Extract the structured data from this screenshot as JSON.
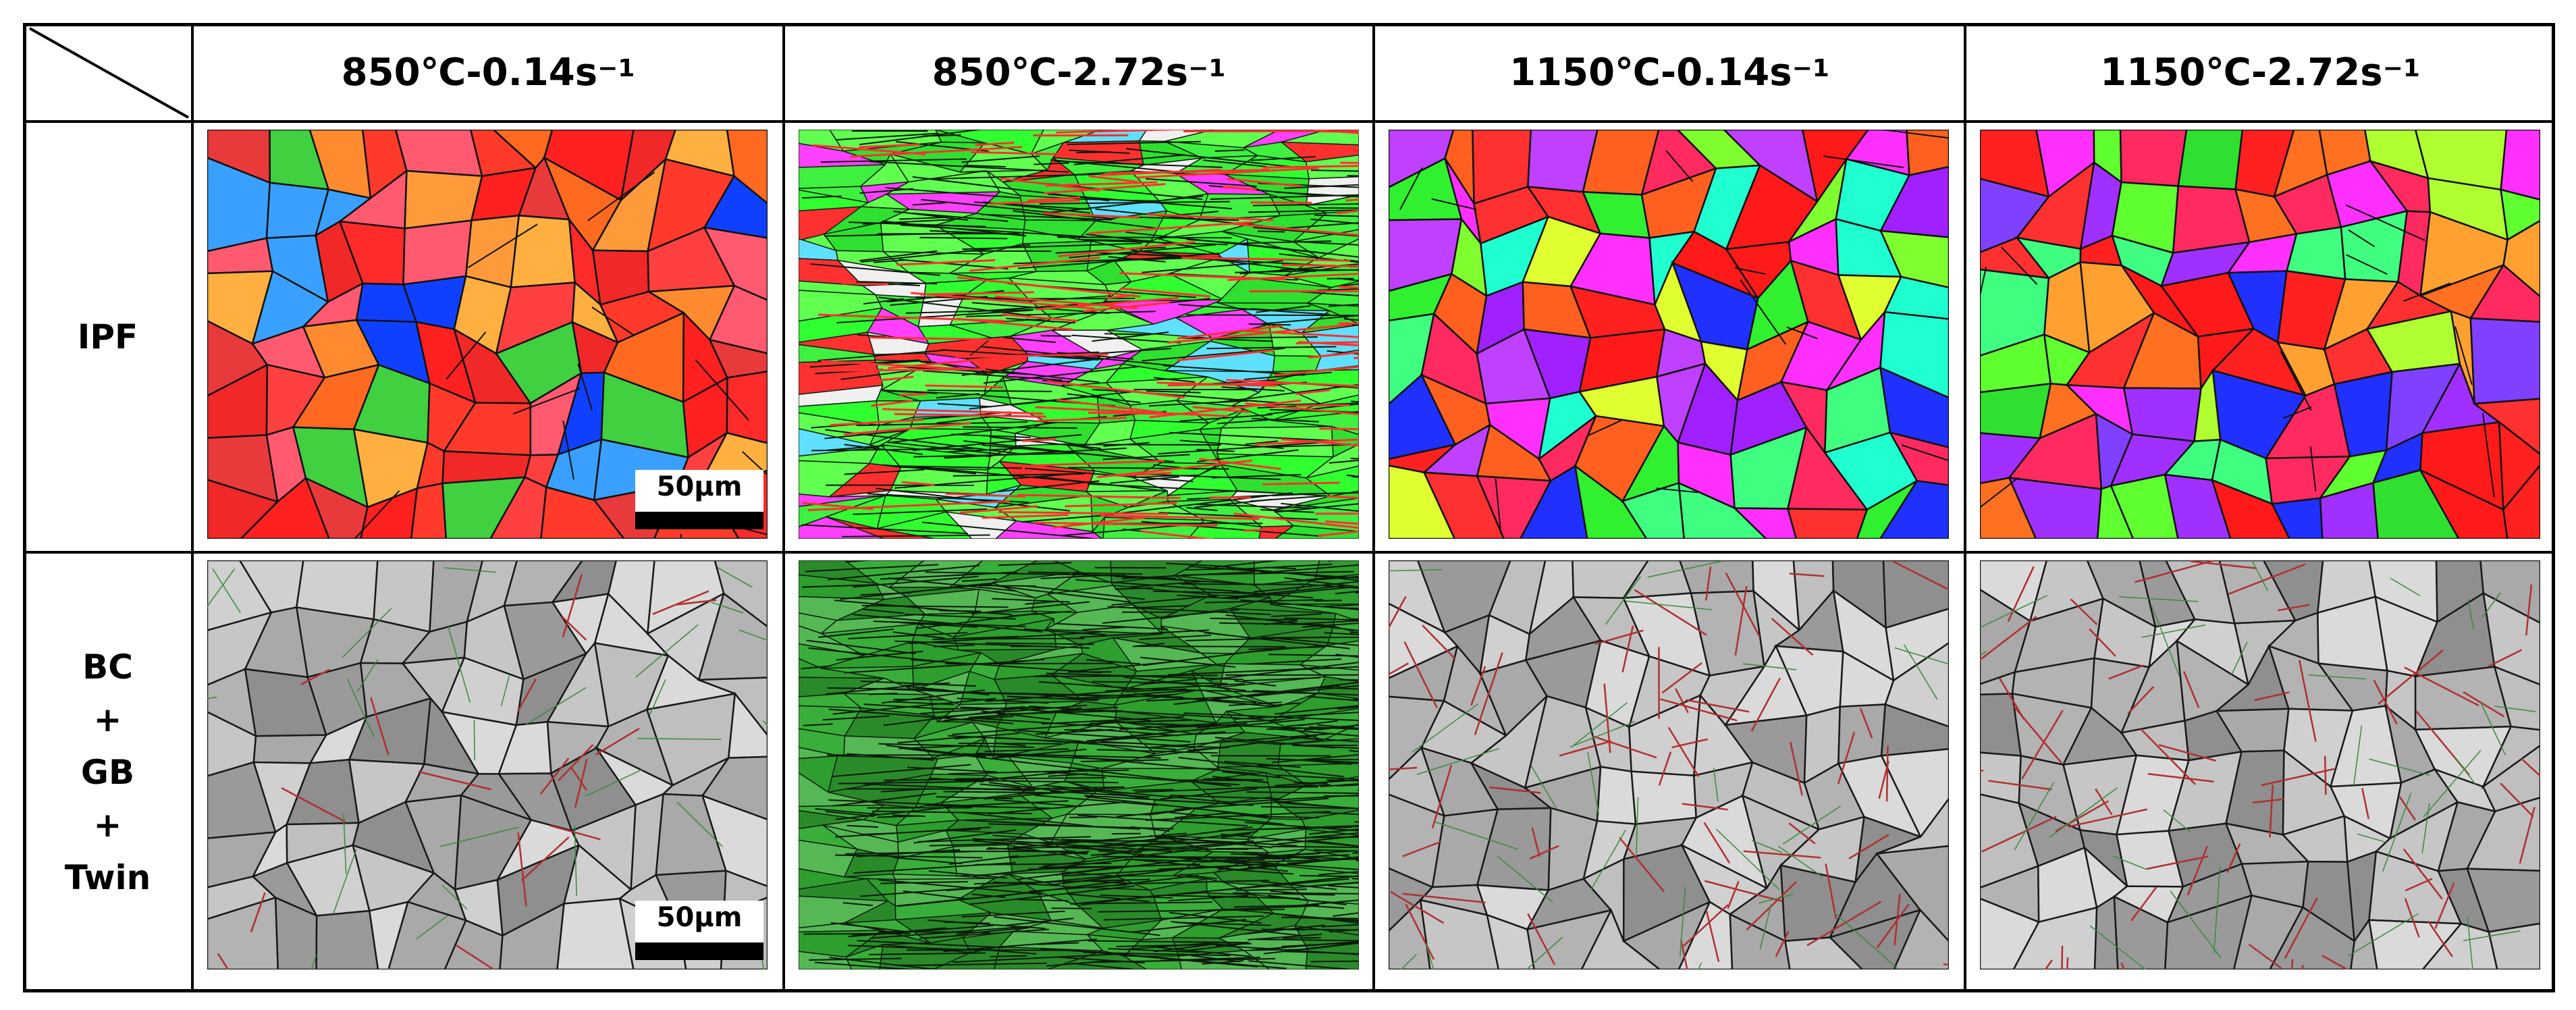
{
  "table": {
    "columns": [
      {
        "text": "850℃-0.14s",
        "superscript": "−1"
      },
      {
        "text": "850℃-2.72s",
        "superscript": "−1"
      },
      {
        "text": "1150℃-0.14s",
        "superscript": "−1"
      },
      {
        "text": "1150℃-2.72s",
        "superscript": "−1"
      }
    ],
    "rows": [
      {
        "label": [
          "IPF"
        ]
      },
      {
        "label": [
          "BC",
          "+",
          "GB",
          "+",
          "Twin"
        ]
      }
    ]
  },
  "scale_bars": [
    "50μm",
    "50μm"
  ]
}
